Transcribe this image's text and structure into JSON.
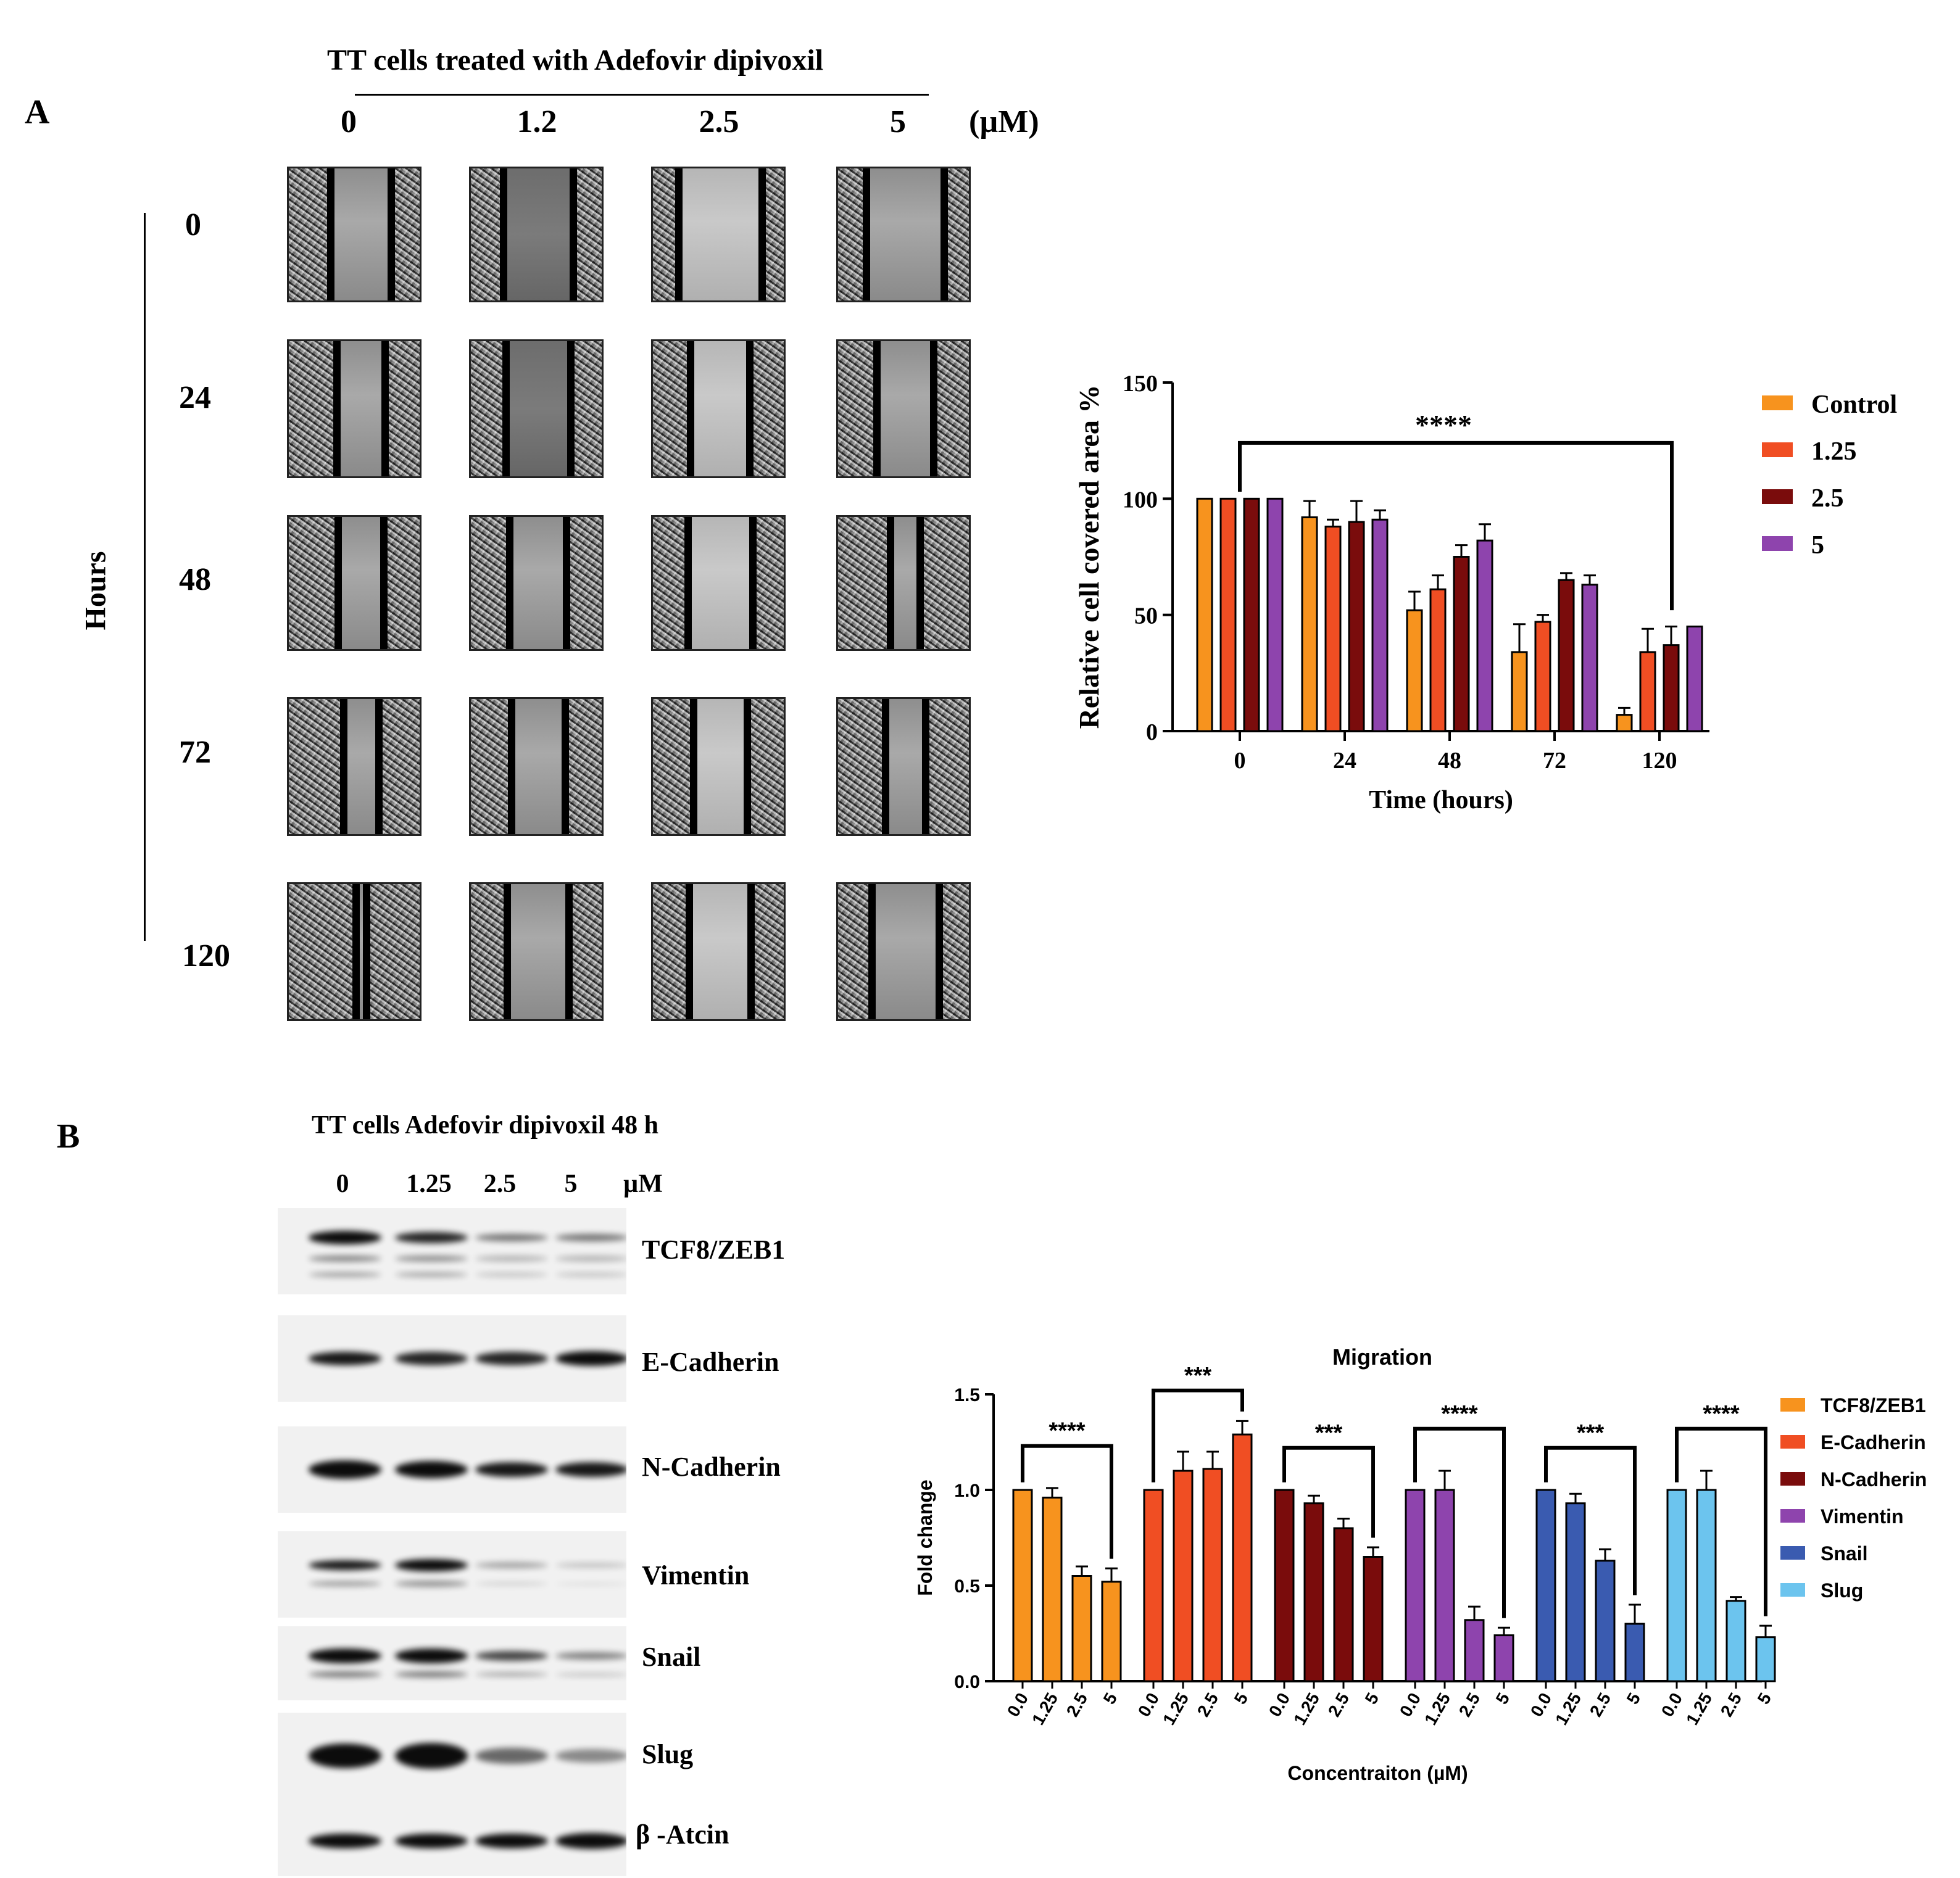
{
  "panel_a": {
    "label": "A",
    "title": "TT cells treated with Adefovir dipivoxil",
    "concentrations": [
      "0",
      "1.2",
      "2.5",
      "5"
    ],
    "unit": "(µM)",
    "y_title": "Hours",
    "hours": [
      "0",
      "24",
      "48",
      "72",
      "120"
    ]
  },
  "panel_b": {
    "label": "B",
    "title": "TT cells Adefovir dipivoxil 48 h",
    "concentrations": [
      "0",
      "1.25",
      "2.5",
      "5"
    ],
    "unit": "µM",
    "proteins": [
      "TCF8/ZEB1",
      "E-Cadherin",
      "N-Cadherin",
      "Vimentin",
      "Snail",
      "Slug",
      "β -Atcin"
    ]
  },
  "chart_data": [
    {
      "type": "bar",
      "title": "",
      "xlabel": "Time (hours)",
      "ylabel": "Relative cell covered area %",
      "ylim": [
        0,
        150
      ],
      "yticks": [
        0,
        50,
        100,
        150
      ],
      "categories": [
        "0",
        "24",
        "48",
        "72",
        "120"
      ],
      "series": [
        {
          "name": "Control",
          "color": "#F7931E",
          "values": [
            100,
            92,
            52,
            34,
            7
          ],
          "errors": [
            0,
            7,
            8,
            12,
            3
          ]
        },
        {
          "name": "1.25",
          "color": "#F04E23",
          "values": [
            100,
            88,
            61,
            47,
            34
          ],
          "errors": [
            0,
            3,
            6,
            3,
            10
          ]
        },
        {
          "name": "2.5",
          "color": "#7A0C0C",
          "values": [
            100,
            90,
            75,
            65,
            37
          ],
          "errors": [
            0,
            9,
            5,
            3,
            8
          ]
        },
        {
          "name": "5",
          "color": "#8E44AD",
          "values": [
            100,
            91,
            82,
            63,
            45
          ],
          "errors": [
            0,
            4,
            7,
            4,
            0
          ]
        }
      ],
      "annotations": [
        {
          "text": "****",
          "from": "0",
          "to": "120"
        }
      ],
      "legend_position": "right"
    },
    {
      "type": "bar",
      "title": "Migration",
      "xlabel": "Concentraiton (µM)",
      "ylabel": "Fold change",
      "ylim": [
        0,
        1.5
      ],
      "yticks": [
        0.0,
        0.5,
        1.0,
        1.5
      ],
      "group_categories": [
        "0.0",
        "1.25",
        "2.5",
        "5"
      ],
      "series": [
        {
          "name": "TCF8/ZEB1",
          "color": "#F7931E",
          "values": [
            1.0,
            0.96,
            0.55,
            0.52
          ],
          "errors": [
            0,
            0.05,
            0.05,
            0.07
          ],
          "sig": "****",
          "bracket": [
            0,
            3
          ]
        },
        {
          "name": "E-Cadherin",
          "color": "#F04E23",
          "values": [
            1.0,
            1.1,
            1.11,
            1.29
          ],
          "errors": [
            0,
            0.1,
            0.09,
            0.07
          ],
          "sig": "***",
          "bracket": [
            0,
            3
          ]
        },
        {
          "name": "N-Cadherin",
          "color": "#7A0C0C",
          "values": [
            1.0,
            0.93,
            0.8,
            0.65
          ],
          "errors": [
            0,
            0.04,
            0.05,
            0.05
          ],
          "sig": "***",
          "bracket": [
            0,
            3
          ]
        },
        {
          "name": "Vimentin",
          "color": "#8E44AD",
          "values": [
            1.0,
            1.0,
            0.32,
            0.24
          ],
          "errors": [
            0,
            0.1,
            0.07,
            0.04
          ],
          "sig": "****",
          "bracket": [
            0,
            3
          ]
        },
        {
          "name": "Snail",
          "color": "#3A5BB0",
          "values": [
            1.0,
            0.93,
            0.63,
            0.3
          ],
          "errors": [
            0,
            0.05,
            0.06,
            0.1
          ],
          "sig": "***",
          "bracket": [
            0,
            3
          ]
        },
        {
          "name": "Slug",
          "color": "#6CC4EE",
          "values": [
            1.0,
            1.0,
            0.42,
            0.23
          ],
          "errors": [
            0,
            0.1,
            0.02,
            0.06
          ],
          "sig": "****",
          "bracket": [
            0,
            3
          ]
        }
      ],
      "legend_position": "right"
    }
  ]
}
